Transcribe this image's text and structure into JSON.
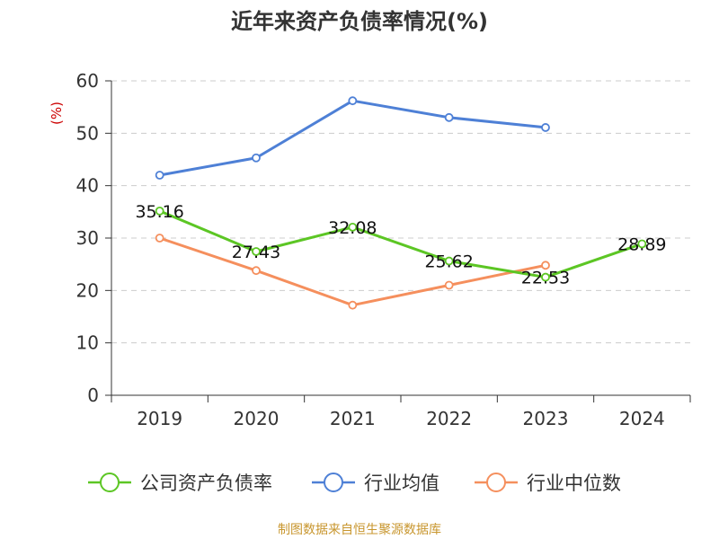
{
  "chart_data": {
    "type": "line",
    "title": "近年来资产负债率情况(%)",
    "ylabel": "(%)",
    "categories": [
      "2019",
      "2020",
      "2021",
      "2022",
      "2023",
      "2024"
    ],
    "ylim": [
      0,
      60
    ],
    "yticks": [
      0,
      10,
      20,
      30,
      40,
      50,
      60
    ],
    "grid": true,
    "legend_position": "bottom",
    "series": [
      {
        "name": "公司资产负债率",
        "color": "#5cc624",
        "values": [
          35.16,
          27.43,
          32.08,
          25.62,
          22.53,
          28.89
        ],
        "labels": [
          "35.16",
          "27.43",
          "32.08",
          "25.62",
          "22.53",
          "28.89"
        ]
      },
      {
        "name": "行业均值",
        "color": "#4e80d6",
        "values": [
          42.0,
          45.3,
          56.2,
          53.0,
          51.1,
          null
        ]
      },
      {
        "name": "行业中位数",
        "color": "#f58f5d",
        "values": [
          30.0,
          23.8,
          17.2,
          21.0,
          24.8,
          null
        ]
      }
    ]
  },
  "source": "制图数据来自恒生聚源数据库",
  "colors": {
    "axis": "#333333",
    "grid": "#cccccc",
    "ylabel": "#cc0000",
    "source": "#c8962e"
  }
}
